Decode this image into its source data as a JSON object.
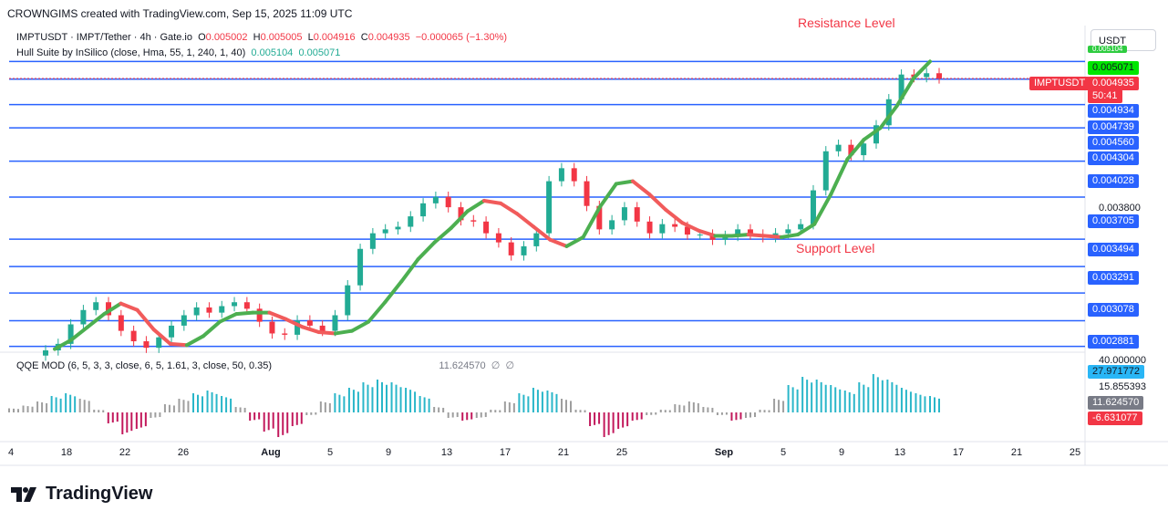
{
  "header": {
    "text": "CROWNGIMS created with TradingView.com, Sep 15, 2025 11:09 UTC"
  },
  "legend": {
    "symbol": "IMPTUSDT · IMPT/Tether · 4h · Gate.io",
    "o_label": "O",
    "o": "0.005002",
    "h_label": "H",
    "h": "0.005005",
    "l_label": "L",
    "l": "0.004916",
    "c_label": "C",
    "c": "0.004935",
    "change": "−0.000065 (−1.30%)",
    "hull_title": "Hull Suite by InSilico (close, Hma, 55, 1, 240, 1, 40)",
    "hull_v1": "0.005104",
    "hull_v2": "0.005071",
    "qqe_title": "QQE MOD (6, 5, 3, 3, close, 6, 5, 1.61, 3, close, 50, 0.35)",
    "qqe_value": "11.624570",
    "qqe_na1": "∅",
    "qqe_na2": "∅"
  },
  "currency": "USDT",
  "annotations": {
    "resistance": "Resistance Level",
    "support": "Support Level"
  },
  "price_tags": {
    "symbol_tag": "IMPTUSDT",
    "last": "0.004935",
    "countdown": "50:41",
    "hull_top": "0.005071",
    "top_cut": "0.005104"
  },
  "levels": [
    "0.004934",
    "0.004739",
    "0.004560",
    "0.004304",
    "0.004028",
    "0.003800",
    "0.003705",
    "0.003494",
    "0.003291",
    "0.003078",
    "0.002881"
  ],
  "qqe_tags": {
    "top": "40.000000",
    "v1": "27.971772",
    "v2": "15.855393",
    "v3": "11.624570",
    "v4": "-6.631077"
  },
  "x_ticks": [
    "4",
    "18",
    "22",
    "26",
    "Aug",
    "5",
    "9",
    "13",
    "17",
    "21",
    "25",
    "Sep",
    "5",
    "9",
    "13",
    "17",
    "21",
    "25"
  ],
  "logo": "TradingView",
  "colors": {
    "up": "#22ab94",
    "down": "#f23645",
    "level": "#2962ff",
    "hull_up": "#4caf50",
    "hull_down": "#f15b5b",
    "qqe_pos": "#29b6c9",
    "qqe_neg": "#c2185b",
    "qqe_grey": "#9e9e9e"
  },
  "chart_data": {
    "type": "line",
    "interval": "4h",
    "symbol": "IMPTUSDT",
    "title": "IMPTUSDT · IMPT/Tether · 4h · Gate.io",
    "price_ylim": [
      0.00285,
      0.00515
    ],
    "horizontal_levels": [
      0.004934,
      0.004739,
      0.00456,
      0.004304,
      0.004028,
      0.003705,
      0.003494,
      0.003291,
      0.003078,
      0.002881
    ],
    "x_ticks": [
      "4",
      "18",
      "22",
      "26",
      "Aug",
      "5",
      "9",
      "13",
      "17",
      "21",
      "25",
      "Sep",
      "5",
      "9",
      "13",
      "17",
      "21",
      "25"
    ],
    "series": [
      {
        "values": [
          0.00285,
          0.0029,
          0.00305,
          0.00316,
          0.00322,
          0.00312,
          0.003,
          0.00292,
          0.00287,
          0.00295,
          0.00304,
          0.00312,
          0.00318,
          0.00314,
          0.00319,
          0.00322,
          0.00317,
          0.00307,
          0.00298,
          0.00297,
          0.00308,
          0.00304,
          0.003,
          0.00312,
          0.00335,
          0.00363,
          0.00375,
          0.00378,
          0.0038,
          0.00388,
          0.00398,
          0.00403,
          0.00395,
          0.00385,
          0.00384,
          0.00375,
          0.00368,
          0.00358,
          0.00365,
          0.00375,
          0.00415,
          0.00425,
          0.00415,
          0.00396,
          0.00378,
          0.00385,
          0.00395,
          0.00384,
          0.00375,
          0.00382,
          0.0038,
          0.00374,
          0.00374,
          0.0037,
          0.00373,
          0.00378,
          0.00374,
          0.00372,
          0.00375,
          0.00378,
          0.00382,
          0.00408,
          0.00438,
          0.00443,
          0.00435,
          0.00444,
          0.00458,
          0.00478,
          0.00497,
          0.00495,
          0.00498,
          0.00494
        ]
      },
      {
        "name": "Hull Suite",
        "values": [
          0.00286,
          0.00293,
          0.00303,
          0.00313,
          0.00321,
          0.00316,
          0.00301,
          0.0029,
          0.00289,
          0.00296,
          0.00307,
          0.00313,
          0.00314,
          0.00314,
          0.00309,
          0.00303,
          0.00299,
          0.00298,
          0.003,
          0.00307,
          0.00322,
          0.00338,
          0.00355,
          0.00368,
          0.00379,
          0.00392,
          0.004,
          0.00398,
          0.0039,
          0.0038,
          0.0037,
          0.00365,
          0.00372,
          0.00395,
          0.00413,
          0.00415,
          0.00405,
          0.00393,
          0.00383,
          0.00377,
          0.00373,
          0.00373,
          0.00374,
          0.00373,
          0.00372,
          0.00374,
          0.00382,
          0.00405,
          0.00432,
          0.00447,
          0.00456,
          0.00473,
          0.00494,
          0.00507
        ]
      }
    ],
    "qqe": {
      "ylim": [
        -20,
        40
      ],
      "values": [
        3,
        5,
        8,
        12,
        14,
        10,
        2,
        -8,
        -16,
        -12,
        -4,
        6,
        10,
        14,
        16,
        12,
        4,
        -6,
        -14,
        -18,
        -10,
        -2,
        8,
        14,
        18,
        22,
        24,
        22,
        18,
        12,
        4,
        -4,
        -6,
        -4,
        2,
        8,
        14,
        18,
        16,
        10,
        2,
        -10,
        -18,
        -12,
        -6,
        -2,
        2,
        6,
        8,
        4,
        -2,
        -6,
        -4,
        2,
        10,
        20,
        26,
        24,
        20,
        16,
        22,
        28,
        24,
        18,
        14,
        12
      ]
    }
  }
}
